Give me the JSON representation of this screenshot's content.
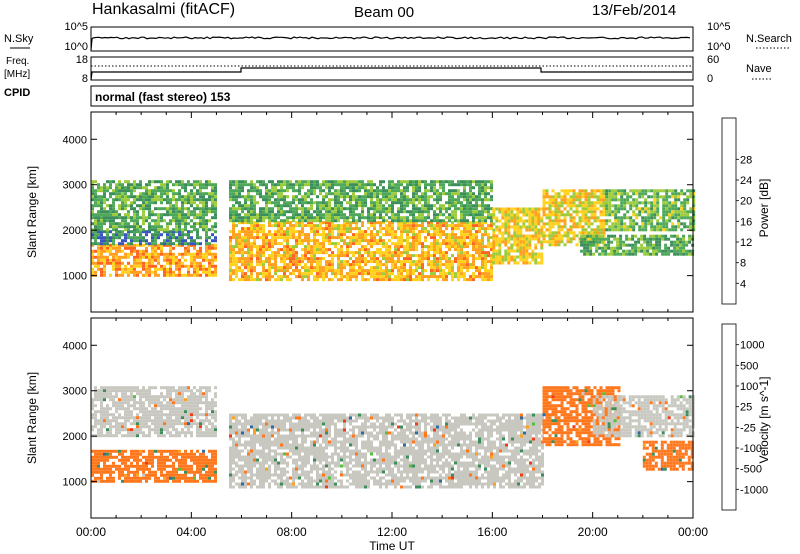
{
  "header": {
    "station": "Hankasalmi (fitACF)",
    "beam": "Beam 00",
    "date": "13/Feb/2014"
  },
  "top_panels": {
    "nsky_label": "N.Sky",
    "nsearch_label": "N.Search",
    "freq_label": "Freq.",
    "freq_unit": "[MHz]",
    "cpid_label": "CPID",
    "nave_label": "Nave",
    "left_ticks_sky": [
      "10^5",
      "10^0"
    ],
    "right_ticks_sky": [
      "10^5",
      "10^0"
    ],
    "left_ticks_freq": [
      "18",
      "8"
    ],
    "right_ticks_nave": [
      "60",
      "0"
    ],
    "cpid_text": "normal (fast stereo) 153"
  },
  "axes": {
    "xlabel": "Time UT",
    "ylabel": "Slant Range [km]",
    "x_ticks": [
      "00:00",
      "04:00",
      "08:00",
      "12:00",
      "16:00",
      "20:00",
      "00:00"
    ],
    "y_ticks": [
      "1000",
      "2000",
      "3000",
      "4000"
    ]
  },
  "chart_data": [
    {
      "type": "heatmap",
      "title": "",
      "xlabel": "",
      "ylabel": "Slant Range [km]",
      "xlim": [
        0,
        24
      ],
      "ylim": [
        200,
        4600
      ],
      "colorbar": {
        "label": "Power [dB]",
        "ticks": [
          "4",
          "8",
          "12",
          "16",
          "20",
          "24",
          "28"
        ],
        "colors": [
          "#1a1adc",
          "#3a55c0",
          "#3c8f5a",
          "#4ea85a",
          "#9ccc3c",
          "#ffd21e",
          "#ffa01e",
          "#ff641e",
          "#f02814"
        ]
      },
      "regions": [
        {
          "t": [
            0.0,
            5.0
          ],
          "range": [
            1000,
            1700
          ],
          "value": 26
        },
        {
          "t": [
            0.0,
            5.0
          ],
          "range": [
            1700,
            2000
          ],
          "value": 10
        },
        {
          "t": [
            0.0,
            5.0
          ],
          "range": [
            2000,
            3100
          ],
          "value": 14
        },
        {
          "t": [
            5.5,
            16.0
          ],
          "range": [
            900,
            2200
          ],
          "value": 24
        },
        {
          "t": [
            5.5,
            16.0
          ],
          "range": [
            2200,
            3100
          ],
          "value": 14
        },
        {
          "t": [
            16.0,
            18.0
          ],
          "range": [
            1300,
            2500
          ],
          "value": 22
        },
        {
          "t": [
            18.0,
            20.5
          ],
          "range": [
            1700,
            2900
          ],
          "value": 22
        },
        {
          "t": [
            20.5,
            24.0
          ],
          "range": [
            2000,
            2900
          ],
          "value": 16
        },
        {
          "t": [
            19.5,
            24.0
          ],
          "range": [
            1500,
            1900
          ],
          "value": 14
        }
      ]
    },
    {
      "type": "heatmap",
      "title": "",
      "xlabel": "Time UT",
      "ylabel": "Slant Range [km]",
      "xlim": [
        0,
        24
      ],
      "ylim": [
        200,
        4600
      ],
      "colorbar": {
        "label": "Velocity [m s^-1]",
        "ticks": [
          "1000",
          "500",
          "100",
          "25",
          "-25",
          "-100",
          "-500",
          "-1000"
        ],
        "colors": [
          "#2040c8",
          "#2f6aa0",
          "#3c8f5a",
          "#55c03c",
          "#c8c8c0",
          "#ffa01e",
          "#ff781e",
          "#f03c14",
          "#dc1414"
        ]
      },
      "regions": [
        {
          "t": [
            0.0,
            5.0
          ],
          "range": [
            1000,
            1700
          ],
          "value": -100
        },
        {
          "t": [
            0.0,
            5.0
          ],
          "range": [
            2000,
            3100
          ],
          "value": 0
        },
        {
          "t": [
            5.5,
            18.0
          ],
          "range": [
            900,
            2500
          ],
          "value": 0
        },
        {
          "t": [
            18.0,
            21.0
          ],
          "range": [
            1800,
            3100
          ],
          "value": -300
        },
        {
          "t": [
            20.0,
            24.0
          ],
          "range": [
            2000,
            2900
          ],
          "value": 0
        },
        {
          "t": [
            22.0,
            24.0
          ],
          "range": [
            1300,
            1900
          ],
          "value": -200
        }
      ]
    }
  ]
}
